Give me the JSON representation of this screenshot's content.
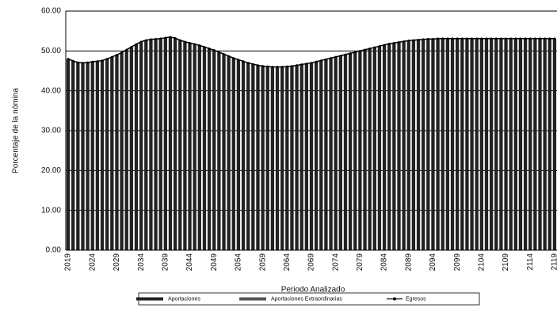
{
  "chart_data": {
    "type": "bar",
    "y_label": "Porcentaje de la nómina",
    "x_label": "Periodo Analizado",
    "categories": [
      "2019",
      null,
      null,
      null,
      null,
      "2024",
      null,
      null,
      null,
      null,
      "2029",
      null,
      null,
      null,
      null,
      "2034",
      null,
      null,
      null,
      null,
      "2039",
      null,
      null,
      null,
      null,
      "2044",
      null,
      null,
      null,
      null,
      "2049",
      null,
      null,
      null,
      null,
      "2054",
      null,
      null,
      null,
      null,
      "2059",
      null,
      null,
      null,
      null,
      "2064",
      null,
      null,
      null,
      null,
      "2069",
      null,
      null,
      null,
      null,
      "2074",
      null,
      null,
      null,
      null,
      "2079",
      null,
      null,
      null,
      null,
      "2084",
      null,
      null,
      null,
      null,
      "2089",
      null,
      null,
      null,
      null,
      "2094",
      null,
      null,
      null,
      null,
      "2099",
      null,
      null,
      null,
      null,
      "2104",
      null,
      null,
      null,
      null,
      "2109",
      null,
      null,
      null,
      null,
      "2114",
      null,
      null,
      null,
      null,
      "2119"
    ],
    "series": [
      {
        "name": "Aportaciones",
        "color": "#222222",
        "values": [
          48.0,
          47.5,
          47.1,
          47.0,
          47.1,
          47.3,
          47.4,
          47.6,
          48.0,
          48.5,
          49.0,
          49.6,
          50.3,
          51.0,
          51.7,
          52.3,
          52.7,
          52.9,
          53.0,
          53.1,
          53.3,
          53.5,
          53.2,
          52.7,
          52.3,
          52.0,
          51.7,
          51.4,
          51.0,
          50.6,
          50.2,
          49.7,
          49.2,
          48.7,
          48.2,
          47.8,
          47.4,
          47.0,
          46.7,
          46.4,
          46.2,
          46.1,
          46.0,
          46.0,
          46.0,
          46.1,
          46.2,
          46.4,
          46.6,
          46.8,
          47.0,
          47.3,
          47.6,
          47.9,
          48.2,
          48.5,
          48.8,
          49.1,
          49.4,
          49.7,
          50.0,
          50.3,
          50.6,
          50.9,
          51.2,
          51.5,
          51.8,
          52.0,
          52.2,
          52.4,
          52.6,
          52.7,
          52.8,
          52.9,
          53.0,
          53.0,
          53.1,
          53.1,
          53.1,
          53.1,
          53.1,
          53.1,
          53.1,
          53.1,
          53.1,
          53.1,
          53.1,
          53.1,
          53.1,
          53.1,
          53.1,
          53.1,
          53.1,
          53.1,
          53.1,
          53.1,
          53.1,
          53.1,
          53.1,
          53.1,
          53.1
        ]
      },
      {
        "name": "Aportaciones Extraordinarias",
        "color": "#555555",
        "values": [
          0,
          0,
          0,
          0,
          0,
          0,
          0,
          0,
          0,
          0,
          0,
          0,
          0,
          0,
          0,
          0,
          0,
          0,
          0,
          0,
          0,
          0,
          0,
          0,
          0,
          0,
          0,
          0,
          0,
          0,
          0,
          0,
          0,
          0,
          0,
          0,
          0,
          0,
          0,
          0,
          0,
          0,
          0,
          0,
          0,
          0,
          0,
          0,
          0,
          0,
          0,
          0,
          0,
          0,
          0,
          0,
          0,
          0,
          0,
          0,
          0,
          0,
          0,
          0,
          0,
          0,
          0,
          0,
          0,
          0,
          0,
          0,
          0,
          0,
          0,
          0,
          0,
          0,
          0,
          0,
          0,
          0,
          0,
          0,
          0,
          0,
          0,
          0,
          0,
          0,
          0,
          0,
          0,
          0,
          0,
          0,
          0,
          0,
          0,
          0,
          0
        ]
      },
      {
        "name": "Egresos",
        "type": "line",
        "color": "#000000",
        "values": [
          48.0,
          47.5,
          47.1,
          47.0,
          47.1,
          47.3,
          47.4,
          47.6,
          48.0,
          48.5,
          49.0,
          49.6,
          50.3,
          51.0,
          51.7,
          52.3,
          52.7,
          52.9,
          53.0,
          53.1,
          53.3,
          53.5,
          53.2,
          52.7,
          52.3,
          52.0,
          51.7,
          51.4,
          51.0,
          50.6,
          50.2,
          49.7,
          49.2,
          48.7,
          48.2,
          47.8,
          47.4,
          47.0,
          46.7,
          46.4,
          46.2,
          46.1,
          46.0,
          46.0,
          46.0,
          46.1,
          46.2,
          46.4,
          46.6,
          46.8,
          47.0,
          47.3,
          47.6,
          47.9,
          48.2,
          48.5,
          48.8,
          49.1,
          49.4,
          49.7,
          50.0,
          50.3,
          50.6,
          50.9,
          51.2,
          51.5,
          51.8,
          52.0,
          52.2,
          52.4,
          52.6,
          52.7,
          52.8,
          52.9,
          53.0,
          53.0,
          53.1,
          53.1,
          53.1,
          53.1,
          53.1,
          53.1,
          53.1,
          53.1,
          53.1,
          53.1,
          53.1,
          53.1,
          53.1,
          53.1,
          53.1,
          53.1,
          53.1,
          53.1,
          53.1,
          53.1,
          53.1,
          53.1,
          53.1,
          53.1,
          53.1
        ]
      }
    ],
    "ylim": [
      0,
      60
    ],
    "yticks": [
      {
        "value": 0,
        "label": "0.00"
      },
      {
        "value": 10,
        "label": "10.00"
      },
      {
        "value": 20,
        "label": "20.00"
      },
      {
        "value": 30,
        "label": "30.00"
      },
      {
        "value": 40,
        "label": "40.00"
      },
      {
        "value": 50,
        "label": "50.00"
      },
      {
        "value": 60,
        "label": "60.00"
      }
    ],
    "grid": true,
    "legend": "bottom"
  }
}
